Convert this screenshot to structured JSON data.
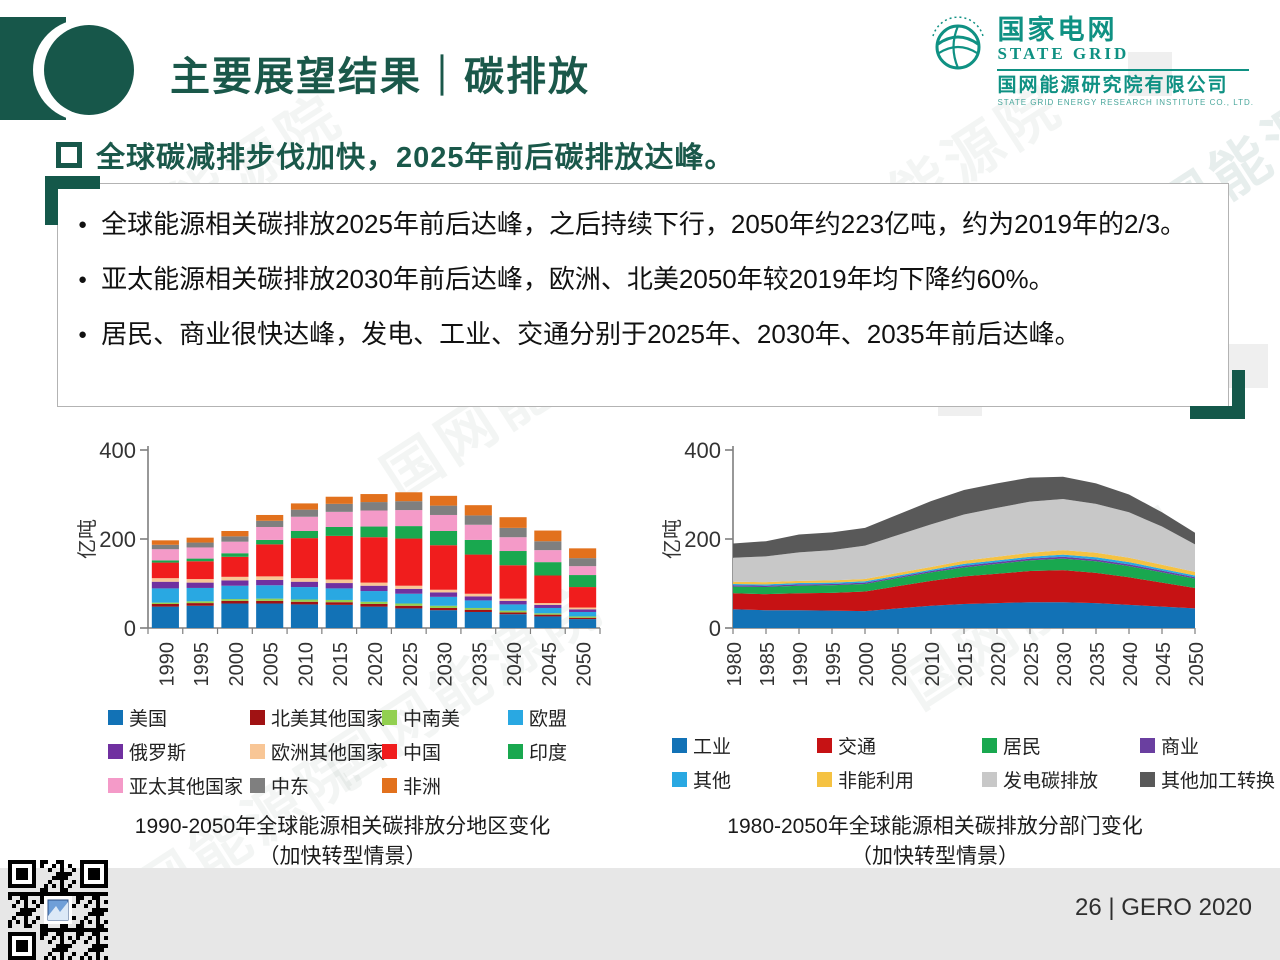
{
  "slide": {
    "title": "主要展望结果｜碳排放",
    "heading": "全球碳减排步伐加快，2025年前后碳排放达峰。",
    "bullets": [
      "全球能源相关碳排放2025年前后达峰，之后持续下行，2050年约223亿吨，约为2019年的2/3。",
      "亚太能源相关碳排放2030年前后达峰，欧洲、北美2050年较2019年均下降约60%。",
      "居民、商业很快达峰，发电、工业、交通分别于2025年、2030年、2035年前后达峰。"
    ],
    "footer": "26 | GERO 2020",
    "watermark": "国网能源院"
  },
  "logo": {
    "brand_cn": "国家电网",
    "brand_en": "STATE GRID",
    "org_cn": "国网能源研究院有限公司",
    "org_en": "STATE GRID ENERGY RESEARCH INSTITUTE CO., LTD."
  },
  "colors": {
    "brand_dark_green": "#17574A",
    "brand_teal": "#0F9183",
    "heading_green": "#1A584A"
  },
  "chart_data": [
    {
      "type": "bar",
      "stacked": true,
      "title": "1990-2050年全球能源相关碳排放分地区变化",
      "subtitle": "（加快转型情景）",
      "ylabel": "亿吨",
      "ylim": [
        0,
        400
      ],
      "yticks": [
        0,
        200,
        400
      ],
      "grid": false,
      "legend_position": "bottom",
      "categories": [
        "1990",
        "1995",
        "2000",
        "2005",
        "2010",
        "2015",
        "2020",
        "2025",
        "2030",
        "2035",
        "2040",
        "2045",
        "2050"
      ],
      "series": [
        {
          "name": "美国",
          "color": "#1272B6",
          "values": [
            48,
            50,
            55,
            55,
            53,
            52,
            48,
            44,
            40,
            36,
            31,
            26,
            20
          ]
        },
        {
          "name": "北美其他国家",
          "color": "#A01213",
          "values": [
            6,
            6,
            6,
            6,
            6,
            6,
            6,
            6,
            5,
            5,
            4,
            4,
            3
          ]
        },
        {
          "name": "中南美",
          "color": "#92D050",
          "values": [
            3,
            4,
            4,
            5,
            5,
            5,
            5,
            5,
            5,
            4,
            4,
            3,
            3
          ]
        },
        {
          "name": "欧盟",
          "color": "#29A8E2",
          "values": [
            32,
            30,
            30,
            30,
            28,
            26,
            24,
            22,
            20,
            17,
            14,
            12,
            10
          ]
        },
        {
          "name": "俄罗斯",
          "color": "#7030A0",
          "values": [
            15,
            12,
            12,
            12,
            12,
            12,
            12,
            11,
            10,
            9,
            8,
            7,
            6
          ]
        },
        {
          "name": "欧洲其他国家",
          "color": "#F8C696",
          "values": [
            8,
            8,
            8,
            8,
            8,
            8,
            7,
            7,
            6,
            6,
            5,
            4,
            4
          ]
        },
        {
          "name": "中国",
          "color": "#F01D1D",
          "values": [
            35,
            40,
            45,
            72,
            90,
            98,
            102,
            106,
            100,
            88,
            75,
            62,
            46
          ]
        },
        {
          "name": "印度",
          "color": "#19A84F",
          "values": [
            5,
            6,
            8,
            10,
            16,
            20,
            24,
            28,
            32,
            33,
            32,
            30,
            27
          ]
        },
        {
          "name": "亚太其他国家",
          "color": "#F49AC8",
          "values": [
            25,
            25,
            26,
            29,
            32,
            34,
            36,
            36,
            36,
            34,
            31,
            27,
            20
          ]
        },
        {
          "name": "中东",
          "color": "#7F7F7F",
          "values": [
            10,
            11,
            12,
            14,
            16,
            18,
            19,
            20,
            21,
            21,
            21,
            20,
            18
          ]
        },
        {
          "name": "非洲",
          "color": "#E2711D",
          "values": [
            10,
            11,
            12,
            13,
            14,
            16,
            18,
            20,
            22,
            23,
            24,
            24,
            22
          ]
        }
      ]
    },
    {
      "type": "area",
      "stacked": true,
      "title": "1980-2050年全球能源相关碳排放分部门变化",
      "subtitle": "（加快转型情景）",
      "ylabel": "亿吨",
      "ylim": [
        0,
        400
      ],
      "yticks": [
        0,
        200,
        400
      ],
      "grid": false,
      "legend_position": "bottom",
      "x": [
        "1980",
        "1985",
        "1990",
        "1995",
        "2000",
        "2005",
        "2010",
        "2015",
        "2020",
        "2025",
        "2030",
        "2035",
        "2040",
        "2045",
        "2050"
      ],
      "series": [
        {
          "name": "工业",
          "color": "#1272B6",
          "values": [
            42,
            40,
            40,
            39,
            38,
            44,
            50,
            54,
            56,
            58,
            58,
            56,
            52,
            48,
            44
          ]
        },
        {
          "name": "交通",
          "color": "#C61214",
          "values": [
            36,
            36,
            38,
            40,
            44,
            50,
            56,
            62,
            66,
            70,
            72,
            68,
            62,
            54,
            46
          ]
        },
        {
          "name": "居民",
          "color": "#19A84F",
          "values": [
            15,
            16,
            17,
            17,
            17,
            18,
            19,
            20,
            22,
            24,
            26,
            26,
            25,
            23,
            21
          ]
        },
        {
          "name": "商业",
          "color": "#6A3FA0",
          "values": [
            3,
            3,
            3,
            3,
            3,
            3,
            3,
            4,
            4,
            4,
            4,
            4,
            4,
            4,
            3
          ]
        },
        {
          "name": "其他",
          "color": "#29A8E2",
          "values": [
            3,
            3,
            3,
            3,
            3,
            3,
            3,
            4,
            4,
            4,
            5,
            5,
            5,
            4,
            4
          ]
        },
        {
          "name": "非能利用",
          "color": "#F5C242",
          "values": [
            5,
            5,
            5,
            5,
            5,
            6,
            6,
            7,
            8,
            9,
            10,
            10,
            10,
            9,
            8
          ]
        },
        {
          "name": "发电碳排放",
          "color": "#C8C8C8",
          "values": [
            54,
            58,
            64,
            68,
            75,
            85,
            96,
            104,
            110,
            115,
            115,
            110,
            102,
            86,
            62
          ]
        },
        {
          "name": "其他加工转换",
          "color": "#595959",
          "values": [
            32,
            34,
            40,
            40,
            40,
            46,
            52,
            55,
            55,
            54,
            50,
            46,
            40,
            32,
            26
          ]
        }
      ]
    }
  ]
}
